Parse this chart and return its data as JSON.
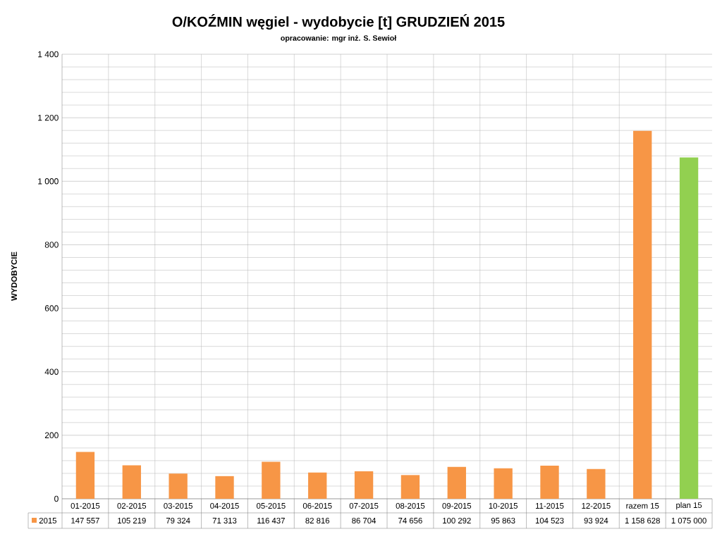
{
  "chart_data": [
    {
      "type": "bar",
      "title": "O/KOŹMIN węgiel - wydobycie [t] GRUDZIEŃ 2015",
      "subtitle": "opracowanie: mgr inż. S. Sewioł",
      "ylabel": "WYDOBYCIE",
      "categories": [
        "01-2015",
        "02-2015",
        "03-2015",
        "04-2015",
        "05-2015",
        "06-2015",
        "07-2015",
        "08-2015",
        "09-2015",
        "10-2015",
        "11-2015",
        "12-2015",
        "razem 15",
        "plan 15"
      ],
      "values": [
        147.557,
        105.219,
        79.324,
        71.313,
        116.437,
        82.816,
        86.704,
        74.656,
        100.292,
        95.863,
        104.523,
        93.924,
        1158.628,
        1075.0
      ],
      "colors": [
        "#f79646",
        "#f79646",
        "#f79646",
        "#f79646",
        "#f79646",
        "#f79646",
        "#f79646",
        "#f79646",
        "#f79646",
        "#f79646",
        "#f79646",
        "#f79646",
        "#f79646",
        "#92d050"
      ],
      "ylim": [
        0,
        1400
      ],
      "yticks": [
        0,
        200,
        400,
        600,
        800,
        {
          "value": 1000,
          "label": "1 000"
        },
        {
          "value": 1200,
          "label": "1 200"
        },
        {
          "value": 1400,
          "label": "1 400"
        }
      ],
      "grid": true
    },
    {
      "type": "other",
      "color": "#f79646",
      "annotations": [
        "2015",
        "147 557",
        "105 219",
        "79 324",
        "71 313",
        "116 437",
        "82 816",
        "86 704",
        "74 656",
        "100 292",
        "95 863",
        "104 523",
        "93 924",
        "1 158 628",
        "1 075 000"
      ]
    }
  ]
}
